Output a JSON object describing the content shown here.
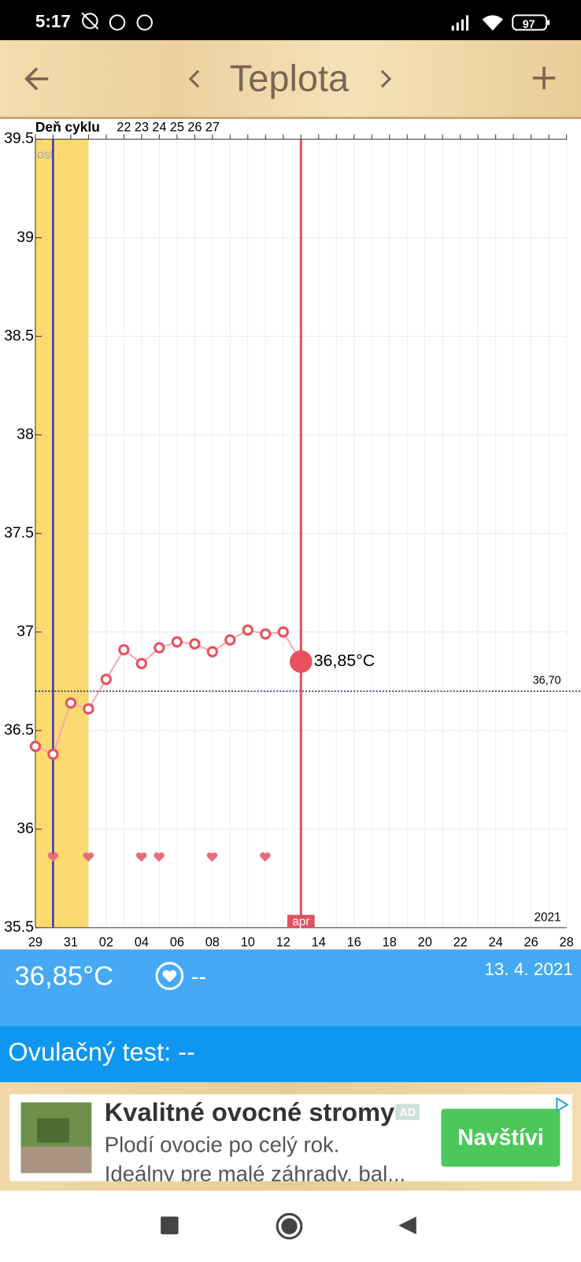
{
  "status_bar": {
    "time": "5:17",
    "battery": "97"
  },
  "header": {
    "title": "Teplota"
  },
  "chart_data": {
    "type": "line",
    "cycle_label": "Deň cyklu",
    "cycle_days": [
      "22",
      "23",
      "24",
      "25",
      "26",
      "27"
    ],
    "categories": [
      "29",
      null,
      "31",
      null,
      "02",
      null,
      "04",
      null,
      "06",
      null,
      "08",
      null,
      "10",
      null,
      "12",
      null,
      "14",
      null,
      "16",
      null,
      "18",
      null,
      "20",
      null,
      "22",
      null,
      "24",
      null,
      "26",
      null,
      "28"
    ],
    "values": [
      36.42,
      36.38,
      36.64,
      36.61,
      36.76,
      36.91,
      36.84,
      36.92,
      36.95,
      36.94,
      36.9,
      36.96,
      37.01,
      36.99,
      37.0,
      36.85,
      null,
      null,
      null,
      null,
      null,
      null,
      null,
      null,
      null,
      null,
      null,
      null,
      null,
      null,
      null
    ],
    "value_labels": [
      null,
      null,
      null,
      null,
      null,
      null,
      null,
      null,
      null,
      null,
      null,
      null,
      null,
      null,
      null,
      "36,85°C",
      null,
      null,
      null,
      null,
      null,
      null,
      null,
      null,
      null,
      null,
      null,
      null,
      null,
      null,
      null
    ],
    "color": "#e8505f",
    "ylim": [
      35.5,
      39.5
    ],
    "yticks": [
      35.5,
      36,
      36.5,
      37,
      37.5,
      38,
      38.5,
      39,
      39.5
    ],
    "grid": true,
    "reference_line": {
      "value": 36.7,
      "label": "36,70"
    },
    "month_label": "apr",
    "year_label": "2021",
    "band_label": "osť"
  },
  "info": {
    "temperature": "36,85°C",
    "intercourse": "--",
    "date": "13. 4. 2021",
    "ovulation_test": "Ovulačný test: --"
  },
  "ad": {
    "title": "Kvalitné ovocné stromy",
    "badge": "AD",
    "line1": "Plodí ovocie po celý rok.",
    "line2": "Ideálny pre malé záhrady, bal...",
    "button": "Navštívi"
  }
}
